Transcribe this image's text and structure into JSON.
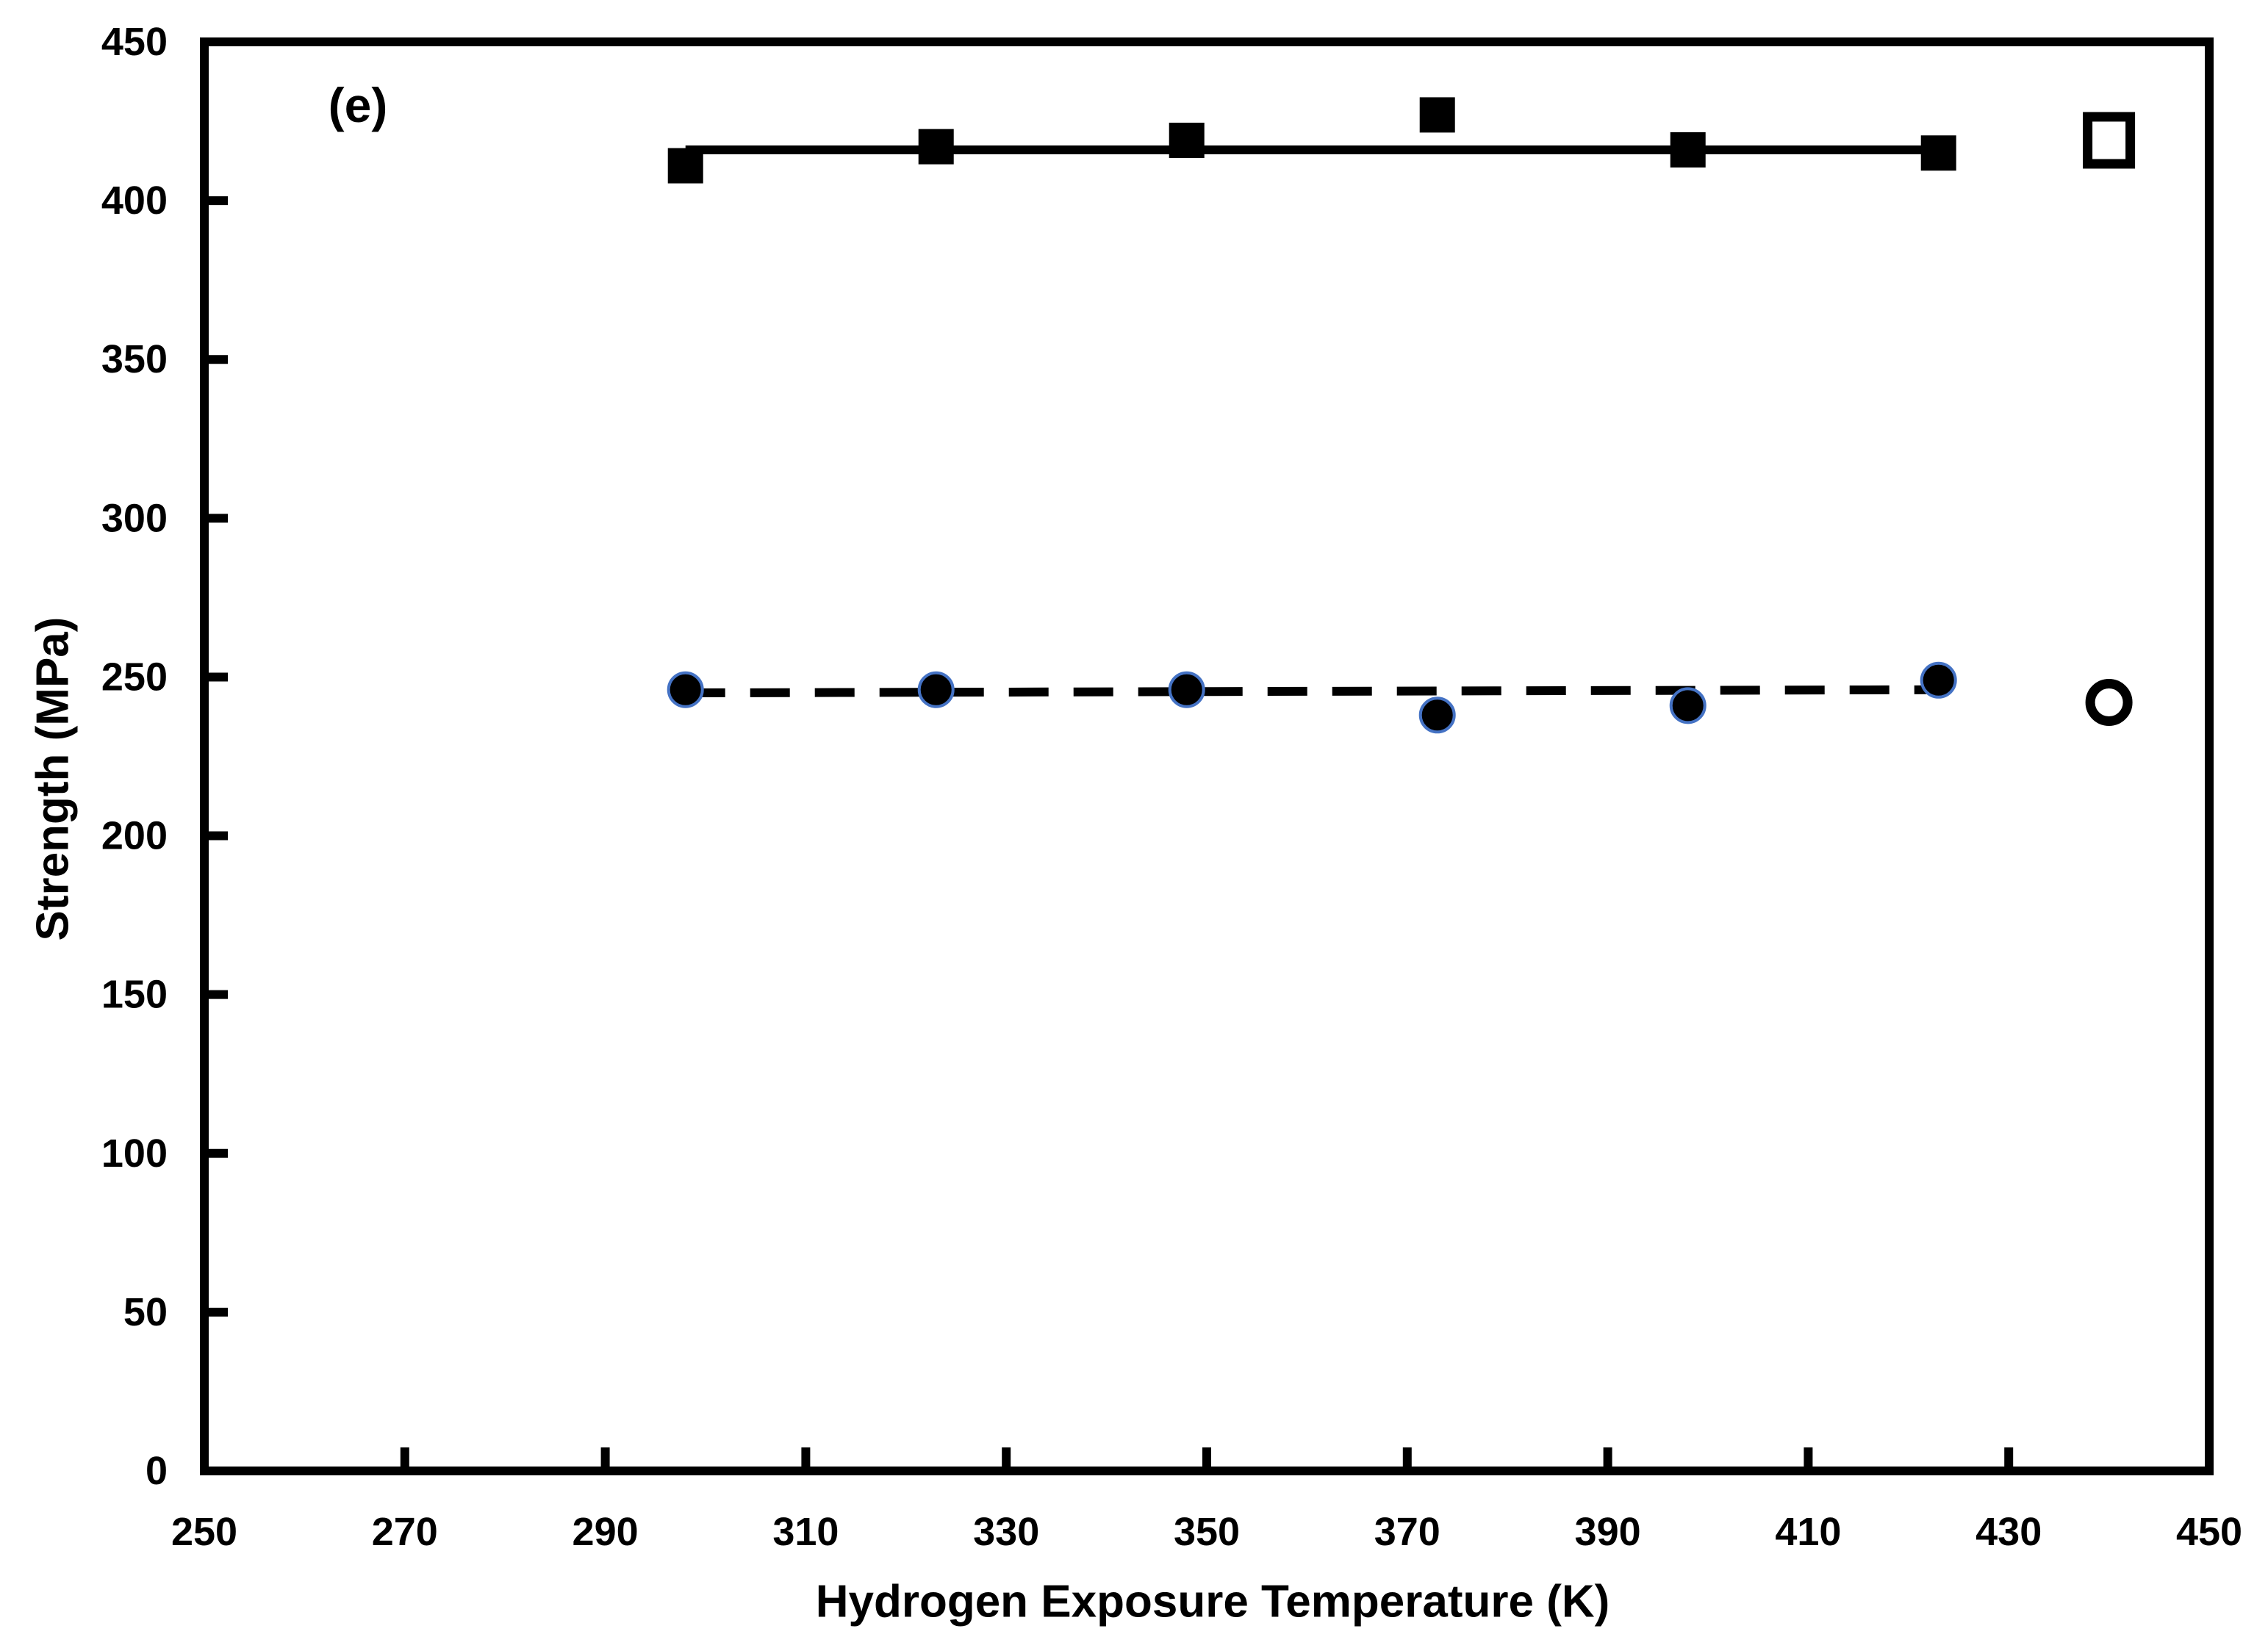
{
  "panel_label": "(e)",
  "colors": {
    "ink": "#000000",
    "background": "#ffffff",
    "circle_ring": "#4472C4"
  },
  "chart_data": {
    "type": "scatter",
    "title": "",
    "panel_label": "(e)",
    "xlabel": "Hydrogen Exposure Temperature (K)",
    "ylabel": "Strength (MPa)",
    "xlim": [
      250,
      450
    ],
    "x_tick_step": 20,
    "x_tick_labels": [
      "250",
      "270",
      "290",
      "310",
      "330",
      "350",
      "370",
      "390",
      "410",
      "430",
      "450"
    ],
    "ylim": [
      0,
      450
    ],
    "y_tick_step": 50,
    "y_tick_labels": [
      "0",
      "50",
      "100",
      "150",
      "200",
      "250",
      "300",
      "350",
      "400",
      "450"
    ],
    "grid": false,
    "legend": "none",
    "series": [
      {
        "name": "filled-squares",
        "marker": "filled-square",
        "color": "#000000",
        "x": [
          298,
          323,
          348,
          373,
          398,
          423
        ],
        "y": [
          411,
          417,
          419,
          427,
          416,
          415
        ],
        "trend_line": {
          "line_style": "solid",
          "x": [
            298,
            423
          ],
          "y": [
            416,
            416
          ]
        }
      },
      {
        "name": "filled-circles",
        "marker": "filled-circle",
        "color": "#000000",
        "ring_color": "#4472C4",
        "x": [
          298,
          323,
          348,
          373,
          398,
          423
        ],
        "y": [
          246,
          246,
          246,
          238,
          241,
          249
        ],
        "trend_line": {
          "line_style": "dashed",
          "x": [
            298,
            423
          ],
          "y": [
            245,
            246
          ]
        }
      }
    ],
    "reference_points": [
      {
        "name": "open-square",
        "marker": "open-square",
        "x": 440,
        "y": 419
      },
      {
        "name": "open-circle",
        "marker": "open-circle",
        "x": 440,
        "y": 242
      }
    ]
  }
}
